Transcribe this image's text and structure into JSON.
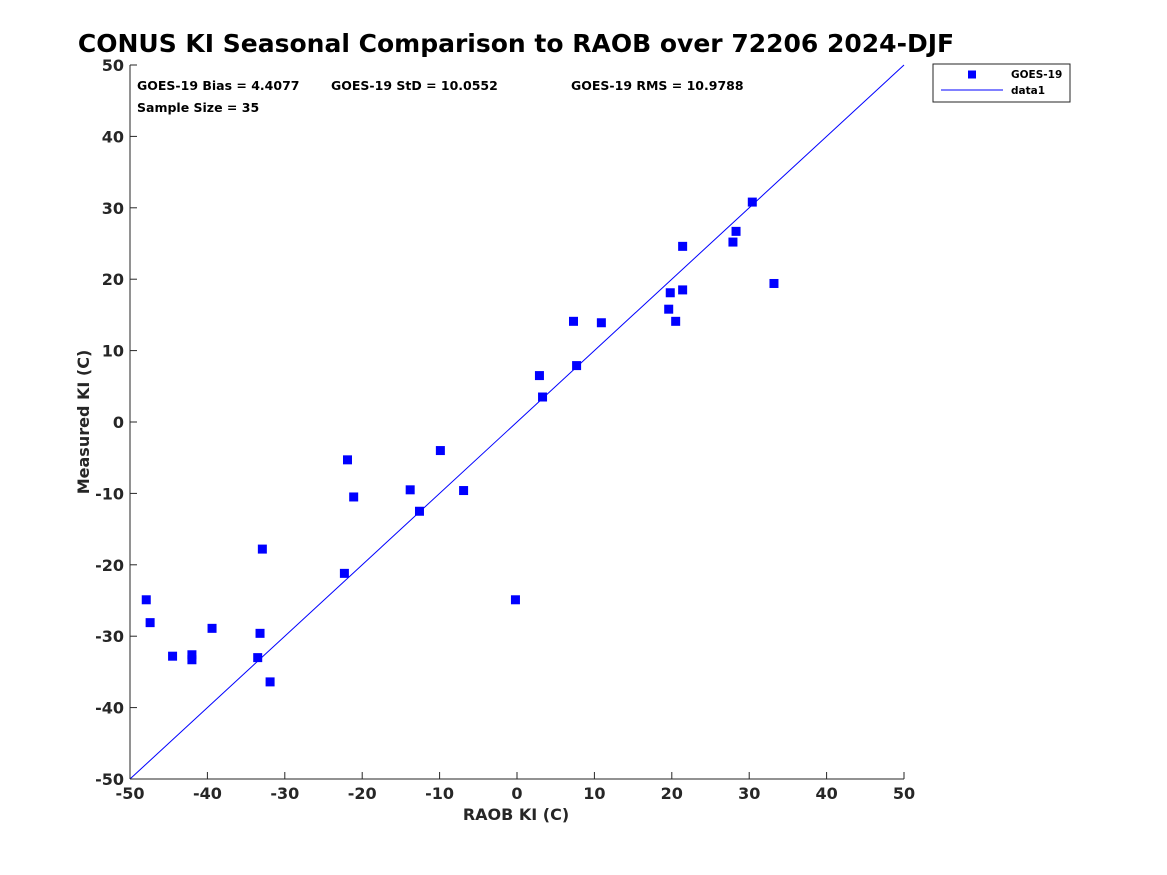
{
  "colors": {
    "marker": "#0000ff",
    "line": "#0000ff",
    "axis": "#262626",
    "background": "#ffffff"
  },
  "chart_data": {
    "type": "scatter",
    "title": "CONUS KI Seasonal Comparison to RAOB over 72206 2024-DJF",
    "xlabel": "RAOB KI (C)",
    "ylabel": "Measured KI (C)",
    "xlim": [
      -50,
      50
    ],
    "ylim": [
      -50,
      50
    ],
    "xticks": [
      -50,
      -40,
      -30,
      -20,
      -10,
      0,
      10,
      20,
      30,
      40,
      50
    ],
    "yticks": [
      -50,
      -40,
      -30,
      -20,
      -10,
      0,
      10,
      20,
      30,
      40,
      50
    ],
    "grid": false,
    "legend_position": "outside top-right",
    "stats": {
      "bias": "GOES-19 Bias = 4.4077",
      "std": "GOES-19 StD = 10.0552",
      "rms": "GOES-19 RMS = 10.9788",
      "sample_size": "Sample Size = 35"
    },
    "series": [
      {
        "name": "GOES-19",
        "kind": "marker",
        "marker": "square",
        "x": [
          -47.9,
          -47.4,
          -44.5,
          -42.0,
          -42.0,
          -39.4,
          -33.5,
          -33.2,
          -32.9,
          -31.9,
          -22.3,
          -21.9,
          -21.1,
          -13.8,
          -12.6,
          -9.9,
          -6.9,
          -0.2,
          2.9,
          3.3,
          7.3,
          7.7,
          10.9,
          19.6,
          19.8,
          20.5,
          21.4,
          21.4,
          27.9,
          28.3,
          30.4,
          33.2
        ],
        "y": [
          -24.9,
          -28.1,
          -32.8,
          -32.6,
          -33.3,
          -28.9,
          -33.0,
          -29.6,
          -17.8,
          -36.4,
          -21.2,
          -5.3,
          -10.5,
          -9.5,
          -12.5,
          -4.0,
          -9.6,
          -24.9,
          6.5,
          3.5,
          14.1,
          7.9,
          13.9,
          15.8,
          18.1,
          14.1,
          24.6,
          18.5,
          25.2,
          26.7,
          30.8,
          19.4
        ]
      },
      {
        "name": "data1",
        "kind": "line",
        "x": [
          -50,
          50
        ],
        "y": [
          -50,
          50
        ]
      }
    ]
  }
}
